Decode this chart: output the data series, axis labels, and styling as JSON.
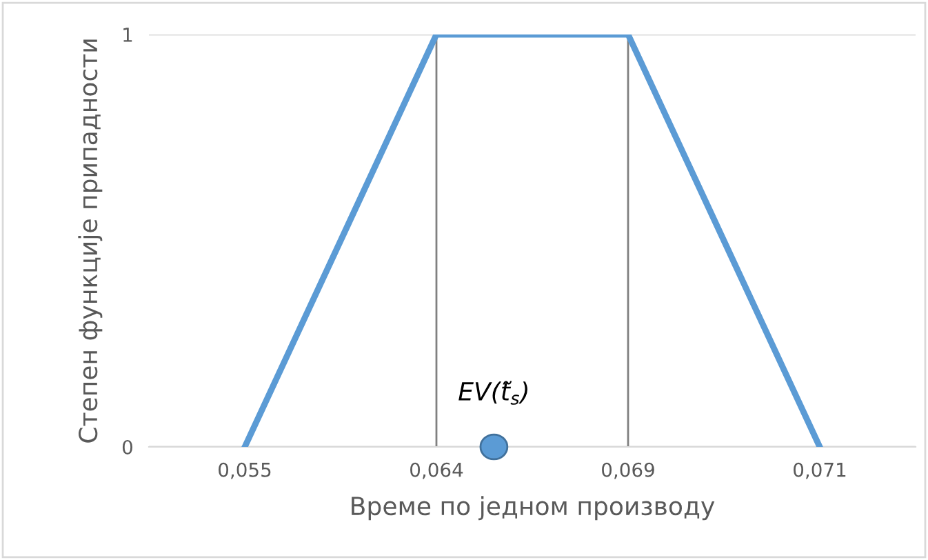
{
  "chart_data": {
    "type": "line",
    "xlabel": "Време по једном производу",
    "ylabel": "Степен функције припадности",
    "categories": [
      "0,055",
      "0,064",
      "0,069",
      "0,071"
    ],
    "series": [
      {
        "color": "#5b9bd5",
        "values": [
          0,
          1,
          1,
          0
        ]
      }
    ],
    "ylim": [
      0,
      1
    ],
    "yticks": [
      0,
      1
    ],
    "grid": "y",
    "marker": "none",
    "ref_lines": [
      {
        "axis": "x",
        "value": "0,064",
        "color": "#808080"
      },
      {
        "axis": "x",
        "value": "0,069",
        "color": "#808080"
      }
    ],
    "annotations": [
      "EV(t̃$_{s}$)"
    ]
  }
}
